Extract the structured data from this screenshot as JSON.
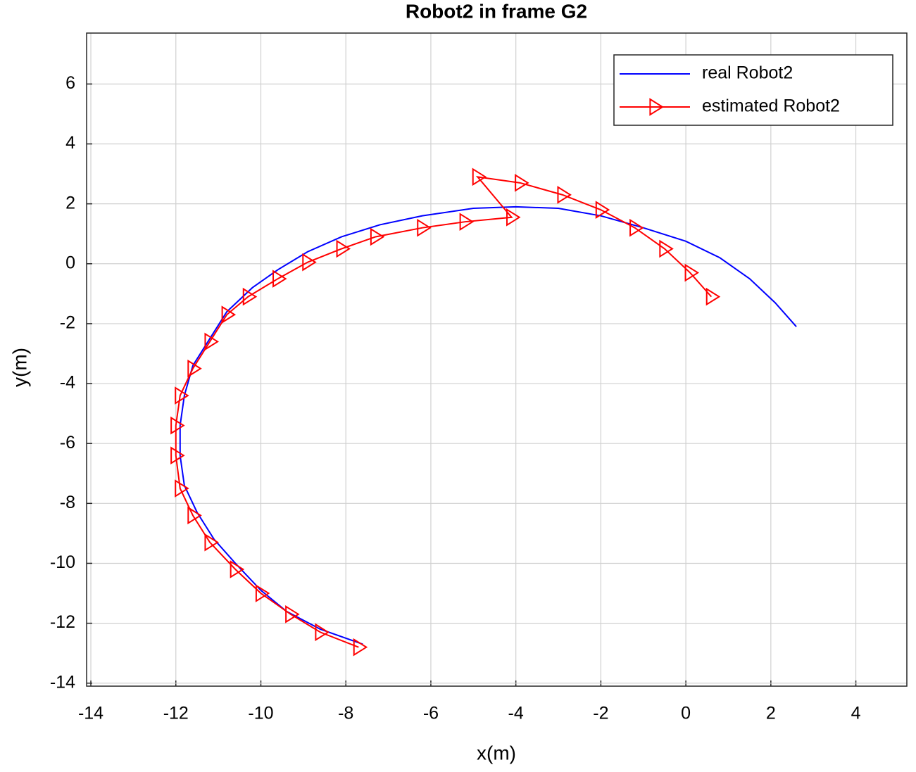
{
  "chart_data": {
    "type": "line",
    "title": "Robot2 in frame G2",
    "x_label": "x(m)",
    "y_label": "y(m)",
    "xlim": [
      -14.1,
      5.2
    ],
    "ylim": [
      -14.1,
      7.7
    ],
    "xticks": [
      -14,
      -12,
      -10,
      -8,
      -6,
      -4,
      -2,
      0,
      2,
      4
    ],
    "yticks": [
      -14,
      -12,
      -10,
      -8,
      -6,
      -4,
      -2,
      0,
      2,
      4,
      6
    ],
    "grid": true,
    "legend_position": "upper-right",
    "series": [
      {
        "name": "real Robot2",
        "color": "#0000ff",
        "marker": "none",
        "x": [
          -7.6,
          -8.6,
          -9.4,
          -10.0,
          -10.6,
          -11.1,
          -11.5,
          -11.8,
          -11.9,
          -11.9,
          -11.8,
          -11.6,
          -11.2,
          -10.8,
          -10.2,
          -9.6,
          -8.9,
          -8.1,
          -7.2,
          -6.2,
          -5.0,
          -4.0,
          -3.0,
          -2.0,
          -1.0,
          0.0,
          0.8,
          1.5,
          2.1,
          2.6
        ],
        "values": [
          -12.7,
          -12.2,
          -11.6,
          -10.9,
          -10.0,
          -9.2,
          -8.3,
          -7.4,
          -6.4,
          -5.4,
          -4.4,
          -3.4,
          -2.5,
          -1.6,
          -0.8,
          -0.2,
          0.4,
          0.9,
          1.3,
          1.6,
          1.85,
          1.9,
          1.85,
          1.6,
          1.2,
          0.75,
          0.2,
          -0.5,
          -1.3,
          -2.1
        ]
      },
      {
        "name": "estimated Robot2",
        "color": "#ff0000",
        "marker": "triangle-right",
        "x": [
          -7.7,
          -8.6,
          -9.3,
          -10.0,
          -10.6,
          -11.2,
          -11.6,
          -11.9,
          -12.0,
          -12.0,
          -11.9,
          -11.6,
          -11.2,
          -10.8,
          -10.3,
          -9.6,
          -8.9,
          -8.1,
          -7.3,
          -6.2,
          -5.2,
          -4.1,
          -4.9,
          -3.9,
          -2.9,
          -2.0,
          -1.2,
          -0.5,
          0.1,
          0.6
        ],
        "values": [
          -12.8,
          -12.3,
          -11.7,
          -11.0,
          -10.2,
          -9.3,
          -8.4,
          -7.5,
          -6.4,
          -5.4,
          -4.4,
          -3.5,
          -2.6,
          -1.7,
          -1.1,
          -0.5,
          0.05,
          0.5,
          0.9,
          1.2,
          1.4,
          1.55,
          2.9,
          2.7,
          2.3,
          1.8,
          1.2,
          0.5,
          -0.3,
          -1.1
        ]
      }
    ]
  }
}
